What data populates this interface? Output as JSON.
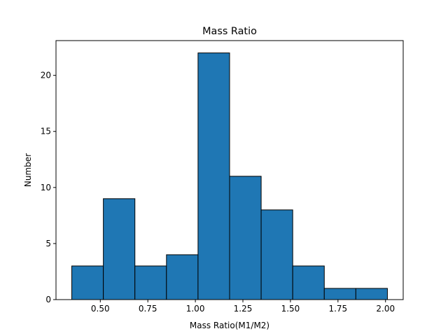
{
  "chart_data": {
    "type": "bar",
    "title": "Mass Ratio",
    "xlabel": "Mass Ratio(M1/M2)",
    "ylabel": "Number",
    "bin_edges": [
      0.35,
      0.516,
      0.682,
      0.848,
      1.014,
      1.18,
      1.346,
      1.512,
      1.678,
      1.844,
      2.01
    ],
    "values": [
      3,
      9,
      3,
      4,
      22,
      11,
      8,
      3,
      1,
      1
    ],
    "xlim": [
      0.267,
      2.093
    ],
    "ylim": [
      0,
      23.1
    ],
    "xticks": [
      0.5,
      0.75,
      1.0,
      1.25,
      1.5,
      1.75,
      2.0
    ],
    "xtick_labels": [
      "0.50",
      "0.75",
      "1.00",
      "1.25",
      "1.50",
      "1.75",
      "2.00"
    ],
    "yticks": [
      0,
      5,
      10,
      15,
      20
    ],
    "ytick_labels": [
      "0",
      "5",
      "10",
      "15",
      "20"
    ],
    "bar_color": "#1f77b4",
    "edge_color": "#000000",
    "grid": false,
    "legend": "none"
  }
}
